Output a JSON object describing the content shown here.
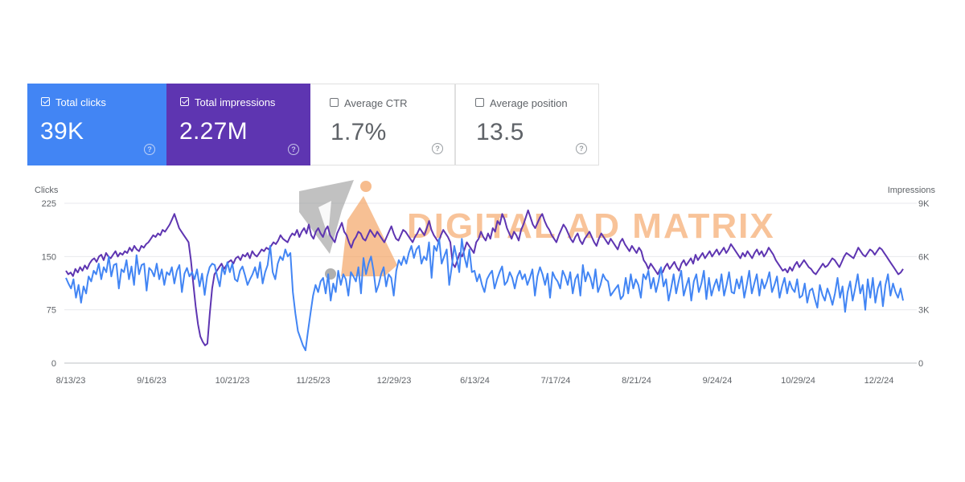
{
  "cards": [
    {
      "label": "Total clicks",
      "value": "39K",
      "checked": true,
      "color": "#4285f4"
    },
    {
      "label": "Total impressions",
      "value": "2.27M",
      "checked": true,
      "color": "#5e35b1"
    },
    {
      "label": "Average CTR",
      "value": "1.7%",
      "checked": false
    },
    {
      "label": "Average position",
      "value": "13.5",
      "checked": false
    }
  ],
  "help_glyph": "?",
  "watermark": {
    "text": "DIGITAL AD MATRIX",
    "logo": "diamond-pin-logo"
  },
  "colors": {
    "clicks": "#4285f4",
    "impressions": "#5e35b1",
    "grid": "#e8eaed",
    "axis": "#5f6368"
  },
  "chart_data": {
    "type": "line",
    "x_labels": [
      "8/13/23",
      "9/16/23",
      "10/21/23",
      "11/25/23",
      "12/29/23",
      "6/13/24",
      "7/17/24",
      "8/21/24",
      "9/24/24",
      "10/29/24",
      "12/2/24"
    ],
    "left_axis": {
      "label": "Clicks",
      "ticks": [
        "0",
        "75",
        "150",
        "225"
      ],
      "range": [
        0,
        225
      ]
    },
    "right_axis": {
      "label": "Impressions",
      "ticks": [
        "0",
        "3K",
        "6K",
        "9K"
      ],
      "range": [
        0,
        9000
      ]
    },
    "grid": true,
    "series": [
      {
        "name": "Total clicks",
        "axis": "left",
        "color": "#4285f4",
        "values": [
          120,
          112,
          105,
          118,
          92,
          110,
          85,
          108,
          98,
          122,
          115,
          130,
          125,
          140,
          118,
          135,
          128,
          150,
          122,
          138,
          140,
          105,
          132,
          128,
          145,
          118,
          136,
          110,
          152,
          125,
          138,
          140,
          102,
          134,
          130,
          122,
          140,
          118,
          132,
          110,
          128,
          124,
          135,
          112,
          130,
          138,
          100,
          126,
          134,
          122,
          128,
          118,
          132,
          108,
          126,
          96,
          122,
          135,
          140,
          138,
          122,
          108,
          135,
          125,
          142,
          128,
          140,
          118,
          115,
          130,
          136,
          124,
          110,
          118,
          125,
          135,
          120,
          142,
          112,
          128,
          138,
          165,
          128,
          118,
          140,
          150,
          145,
          160,
          150,
          155,
          100,
          70,
          45,
          35,
          25,
          18,
          45,
          70,
          95,
          110,
          100,
          115,
          120,
          98,
          125,
          88,
          112,
          100,
          130,
          110,
          125,
          118,
          95,
          128,
          122,
          115,
          135,
          98,
          148,
          125,
          140,
          150,
          130,
          100,
          110,
          125,
          135,
          108,
          125,
          120,
          95,
          130,
          145,
          138,
          150,
          140,
          155,
          165,
          148,
          160,
          165,
          140,
          150,
          145,
          170,
          120,
          165,
          158,
          175,
          140,
          150,
          160,
          110,
          135,
          165,
          148,
          128,
          175,
          150,
          135,
          160,
          128,
          130,
          115,
          125,
          110,
          100,
          118,
          125,
          130,
          105,
          118,
          128,
          136,
          110,
          115,
          128,
          120,
          105,
          122,
          130,
          118,
          125,
          110,
          120,
          132,
          95,
          122,
          135,
          125,
          110,
          126,
          92,
          128,
          120,
          115,
          105,
          130,
          122,
          110,
          128,
          98,
          118,
          125,
          95,
          138,
          115,
          128,
          120,
          105,
          132,
          100,
          110,
          125,
          118,
          115,
          95,
          100,
          105,
          110,
          90,
          95,
          120,
          98,
          125,
          105,
          118,
          110,
          92,
          125,
          118,
          130,
          105,
          120,
          100,
          115,
          135,
          108,
          118,
          88,
          105,
          125,
          98,
          115,
          130,
          95,
          108,
          120,
          88,
          115,
          125,
          100,
          112,
          130,
          90,
          120,
          95,
          108,
          118,
          102,
          125,
          95,
          110,
          128,
          100,
          98,
          118,
          105,
          122,
          92,
          110,
          130,
          98,
          112,
          125,
          95,
          118,
          105,
          115,
          128,
          100,
          110,
          122,
          92,
          108,
          120,
          98,
          115,
          105,
          100,
          118,
          92,
          95,
          112,
          85,
          102,
          105,
          90,
          78,
          110,
          96,
          88,
          105,
          95,
          82,
          98,
          120,
          92,
          108,
          72,
          100,
          115,
          88,
          105,
          125,
          98,
          110,
          75,
          118,
          92,
          120,
          85,
          105,
          115,
          80,
          110,
          125,
          95,
          112,
          100,
          92,
          105,
          88
        ],
        "ylim": [
          0,
          225
        ]
      },
      {
        "name": "Total impressions",
        "axis": "right",
        "color": "#5e35b1",
        "values": [
          5200,
          5000,
          5100,
          4900,
          5300,
          5100,
          5400,
          5200,
          5500,
          5300,
          5600,
          5800,
          5900,
          5700,
          6000,
          6100,
          5800,
          6200,
          6000,
          5900,
          6100,
          6300,
          6000,
          6200,
          6100,
          6300,
          6200,
          6500,
          6300,
          6600,
          6400,
          6300,
          6600,
          6500,
          6700,
          6800,
          7000,
          7200,
          7100,
          7300,
          7200,
          7500,
          7400,
          7600,
          7800,
          8100,
          8400,
          8000,
          7600,
          7400,
          7200,
          7000,
          6800,
          5800,
          4500,
          3200,
          2200,
          1500,
          1200,
          1000,
          1100,
          2800,
          4200,
          5000,
          5200,
          5400,
          5600,
          5300,
          5500,
          5700,
          5800,
          5600,
          5900,
          6000,
          5800,
          6100,
          6000,
          6200,
          5900,
          6300,
          6100,
          6000,
          6200,
          6400,
          6300,
          6500,
          6400,
          6600,
          6800,
          6700,
          6900,
          7200,
          7000,
          6900,
          6800,
          7100,
          7300,
          7200,
          7500,
          7100,
          7400,
          7600,
          7300,
          7800,
          7200,
          7000,
          7400,
          7600,
          7300,
          7100,
          7500,
          7700,
          7200,
          7000,
          6800,
          7300,
          7600,
          7900,
          7400,
          7200,
          6800,
          6500,
          6900,
          7100,
          7400,
          7300,
          7000,
          6900,
          7200,
          7500,
          7300,
          7100,
          7400,
          7200,
          7000,
          6800,
          7100,
          7400,
          7700,
          7300,
          7000,
          6900,
          7200,
          7500,
          7400,
          7200,
          7000,
          6800,
          7100,
          7300,
          7600,
          7400,
          7200,
          7600,
          8000,
          7500,
          7200,
          7000,
          6800,
          7200,
          7500,
          7300,
          7100,
          6800,
          5600,
          5400,
          5800,
          6200,
          6000,
          6400,
          6800,
          6600,
          6400,
          6200,
          6800,
          7000,
          7400,
          7100,
          6900,
          7300,
          7000,
          7600,
          7400,
          8000,
          7800,
          8400,
          8100,
          7600,
          7300,
          7000,
          7400,
          7200,
          6900,
          7500,
          7800,
          8200,
          8600,
          8200,
          7800,
          7600,
          7900,
          8200,
          8400,
          8000,
          7700,
          7500,
          7200,
          7000,
          6800,
          7200,
          7500,
          7800,
          7600,
          7300,
          7000,
          6800,
          7100,
          7300,
          6900,
          6700,
          7000,
          7200,
          7400,
          7100,
          6800,
          6600,
          7000,
          7300,
          7100,
          6900,
          6700,
          7000,
          6800,
          6600,
          6400,
          6800,
          7000,
          6700,
          6500,
          6300,
          6600,
          6400,
          6200,
          6500,
          6300,
          5800,
          5600,
          5300,
          5600,
          5400,
          5200,
          5000,
          5300,
          5100,
          5400,
          5600,
          5300,
          5500,
          5700,
          5400,
          5200,
          5600,
          5800,
          5500,
          5700,
          5900,
          5600,
          6100,
          5800,
          6000,
          6200,
          5900,
          6100,
          6300,
          6000,
          6200,
          6400,
          6100,
          6300,
          6500,
          6200,
          6400,
          6700,
          6500,
          6300,
          6100,
          5900,
          6200,
          6000,
          6300,
          6100,
          5900,
          6200,
          6400,
          6100,
          6300,
          6000,
          6200,
          6500,
          6300,
          6100,
          5800,
          5600,
          5400,
          5200,
          5300,
          5100,
          5400,
          5200,
          5500,
          5700,
          5400,
          5600,
          5800,
          5600,
          5400,
          5300,
          5100,
          5000,
          5200,
          5400,
          5600,
          5400,
          5500,
          5700,
          5900,
          5800,
          5600,
          5400,
          5700,
          6000,
          6200,
          6100,
          6000,
          5900,
          6200,
          6500,
          6300,
          6100,
          6000,
          6200,
          6400,
          6300,
          6100,
          6300,
          6500,
          6400,
          6200,
          6000,
          5800,
          5600,
          5400,
          5200,
          5000,
          5100,
          5300
        ],
        "ylim": [
          0,
          9000
        ]
      }
    ]
  }
}
